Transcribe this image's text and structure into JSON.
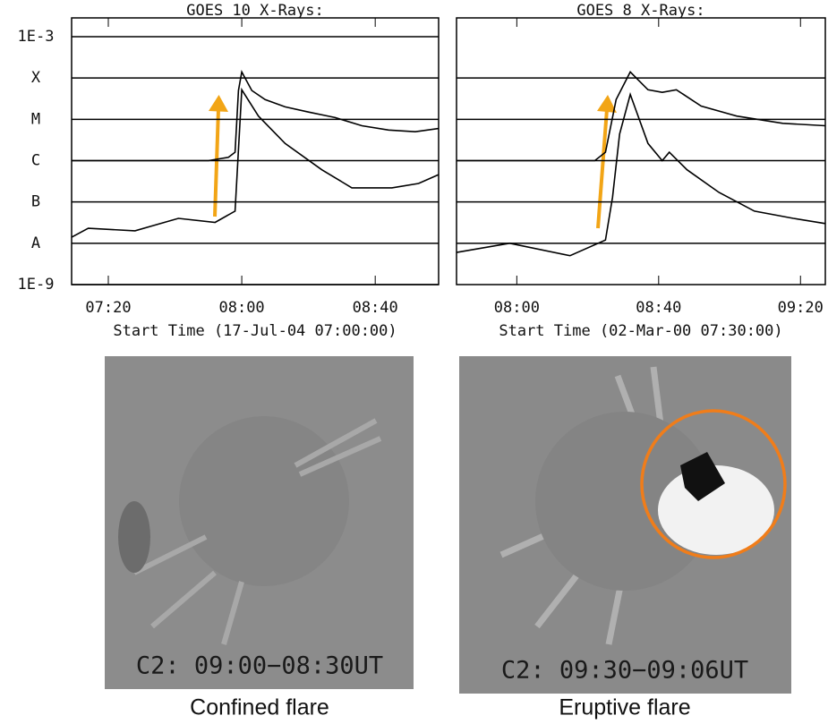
{
  "chart_data": [
    {
      "type": "line",
      "title": "GOES 10 X-Rays:",
      "x_label": "Start Time (17-Jul-04 07:00:00)",
      "log_scale_y": true,
      "grid": true,
      "xlim": [
        "07:09",
        "08:59"
      ],
      "xticks": [
        "07:20",
        "08:00",
        "08:40"
      ],
      "ylim": [
        1e-09,
        0.001
      ],
      "yticks": [
        {
          "value": 0.001,
          "label": "1E-3"
        },
        {
          "value": 0.0001,
          "label": "X"
        },
        {
          "value": 1e-05,
          "label": "M"
        },
        {
          "value": 1e-06,
          "label": "C"
        },
        {
          "value": 1e-07,
          "label": "B"
        },
        {
          "value": 1e-08,
          "label": "A"
        },
        {
          "value": 1e-09,
          "label": "1E-9"
        }
      ],
      "series": [
        {
          "color": "#000000",
          "x": [
            "07:09",
            "07:30",
            "07:50",
            "07:56",
            "07:58",
            "07:59",
            "08:00",
            "08:03",
            "08:07",
            "08:13",
            "08:20",
            "08:28",
            "08:36",
            "08:44",
            "08:52",
            "08:59"
          ],
          "values": [
            1e-06,
            1e-06,
            1e-06,
            1.2e-06,
            1.6e-06,
            5e-05,
            0.00014,
            5e-05,
            3e-05,
            2e-05,
            1.5e-05,
            1.1e-05,
            7e-06,
            5.5e-06,
            5e-06,
            6e-06
          ]
        },
        {
          "color": "#000000",
          "x": [
            "07:09",
            "07:14",
            "07:28",
            "07:41",
            "07:52",
            "07:58",
            "08:00",
            "08:05",
            "08:13",
            "08:24",
            "08:33",
            "08:45",
            "08:53",
            "08:59"
          ],
          "values": [
            1.4e-08,
            2.3e-08,
            2e-08,
            4e-08,
            3.2e-08,
            6e-08,
            5.2e-05,
            1.2e-05,
            2.6e-06,
            6e-07,
            2.2e-07,
            2.2e-07,
            2.8e-07,
            4.6e-07
          ]
        }
      ]
    },
    {
      "type": "line",
      "title": "GOES 8 X-Rays:",
      "x_label": "Start Time (02-Mar-00 07:30:00)",
      "log_scale_y": true,
      "grid": true,
      "xlim": [
        "07:43",
        "09:27"
      ],
      "xticks": [
        "08:00",
        "08:40",
        "09:20"
      ],
      "ylim": [
        1e-09,
        0.001
      ],
      "yticks": [
        0.0001,
        1e-05,
        1e-06,
        1e-07,
        1e-08
      ],
      "series": [
        {
          "color": "#000000",
          "x": [
            "07:43",
            "08:00",
            "08:22",
            "08:25",
            "08:28",
            "08:32",
            "08:37",
            "08:41",
            "08:45",
            "08:52",
            "09:02",
            "09:15",
            "09:27"
          ],
          "values": [
            1e-06,
            1e-06,
            1e-06,
            1.6e-06,
            3e-05,
            0.00014,
            5.2e-05,
            4.5e-05,
            5.2e-05,
            2.1e-05,
            1.2e-05,
            8e-06,
            7e-06
          ]
        },
        {
          "color": "#000000",
          "x": [
            "07:43",
            "07:58",
            "08:15",
            "08:25",
            "08:27",
            "08:29",
            "08:32",
            "08:37",
            "08:41",
            "08:43",
            "08:48",
            "08:57",
            "09:07",
            "09:18",
            "09:27"
          ],
          "values": [
            6e-09,
            1e-08,
            5e-09,
            1.2e-08,
            1.3e-07,
            4.4e-06,
            4e-05,
            2.6e-06,
            1e-06,
            1.6e-06,
            6e-07,
            1.7e-07,
            6e-08,
            4e-08,
            3e-08
          ]
        }
      ]
    }
  ],
  "images": [
    {
      "label": "C2: 09:00−08:30UT",
      "caption": "Confined flare"
    },
    {
      "label": "C2: 09:30−09:06UT",
      "caption": "Eruptive flare"
    }
  ]
}
